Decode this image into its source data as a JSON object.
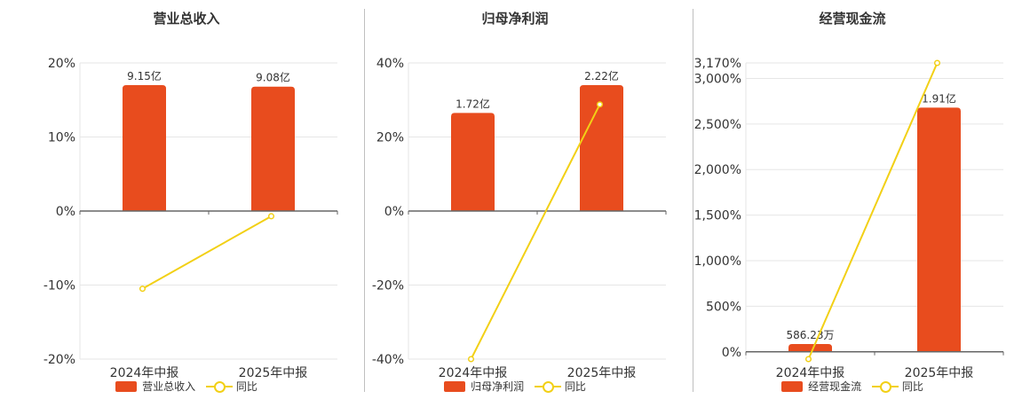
{
  "colors": {
    "bar": "#e84c1e",
    "line": "#f2d016",
    "grid": "#e6e6e6",
    "axis": "#666666",
    "text": "#333333"
  },
  "chart_data": [
    {
      "type": "bar",
      "title": "营业总收入",
      "categories": [
        "2024年中报",
        "2025年中报"
      ],
      "ylim": [
        -20,
        20
      ],
      "yticks": [
        -20,
        -10,
        0,
        10,
        20
      ],
      "ytick_labels": [
        "-20%",
        "-10%",
        "0%",
        "10%",
        "20%"
      ],
      "series": [
        {
          "name": "营业总收入",
          "type": "bar",
          "values": [
            17,
            16.8
          ],
          "data_labels": [
            "9.15亿",
            "9.08亿"
          ]
        },
        {
          "name": "同比",
          "type": "line",
          "values": [
            -10.5,
            -0.7
          ]
        }
      ],
      "legend": [
        "营业总收入",
        "同比"
      ],
      "legend_position": "bottom"
    },
    {
      "type": "bar",
      "title": "归母净利润",
      "categories": [
        "2024年中报",
        "2025年中报"
      ],
      "ylim": [
        -40,
        40
      ],
      "yticks": [
        -40,
        -20,
        0,
        20,
        40
      ],
      "ytick_labels": [
        "-40%",
        "-20%",
        "0%",
        "20%",
        "40%"
      ],
      "series": [
        {
          "name": "归母净利润",
          "type": "bar",
          "values": [
            26.5,
            34
          ],
          "data_labels": [
            "1.72亿",
            "2.22亿"
          ]
        },
        {
          "name": "同比",
          "type": "line",
          "values": [
            -40,
            28.8
          ]
        }
      ],
      "legend": [
        "归母净利润",
        "同比"
      ],
      "legend_position": "bottom"
    },
    {
      "type": "bar",
      "title": "经营现金流",
      "categories": [
        "2024年中报",
        "2025年中报"
      ],
      "ylim": [
        -80,
        3170
      ],
      "yticks": [
        0,
        500,
        1000,
        1500,
        2000,
        2500,
        3000,
        3170
      ],
      "ytick_labels": [
        "0%",
        "500%",
        "1,000%",
        "1,500%",
        "2,000%",
        "2,500%",
        "3,000%",
        "3,170%"
      ],
      "series": [
        {
          "name": "经营现金流",
          "type": "bar",
          "values": [
            85,
            2680
          ],
          "data_labels": [
            "586.23万",
            "1.91亿"
          ]
        },
        {
          "name": "同比",
          "type": "line",
          "values": [
            -80,
            3170
          ]
        }
      ],
      "legend": [
        "经营现金流",
        "同比"
      ],
      "legend_position": "bottom"
    }
  ]
}
